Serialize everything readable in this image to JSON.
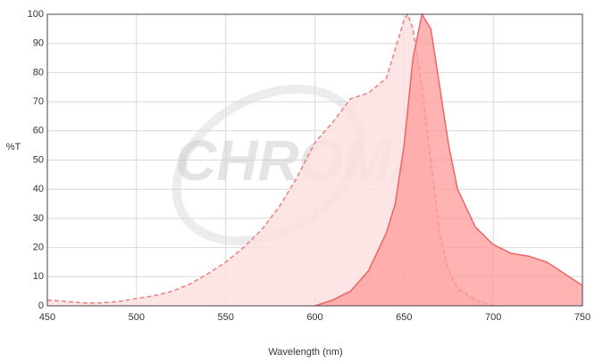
{
  "watermark": "CHROMA",
  "chart_data": {
    "type": "area",
    "x_label": "Wavelength (nm)",
    "y_label": "%T",
    "xlim": [
      450,
      750
    ],
    "ylim": [
      0,
      100
    ],
    "xticks": [
      450,
      500,
      550,
      600,
      650,
      700,
      750
    ],
    "yticks": [
      0,
      10,
      20,
      30,
      40,
      50,
      60,
      70,
      80,
      90,
      100
    ],
    "grid": true,
    "series": [
      {
        "color": "#f08080",
        "fill": "#fde0e1",
        "dashed": true,
        "x": [
          450,
          460,
          470,
          480,
          490,
          500,
          510,
          520,
          530,
          540,
          550,
          560,
          570,
          580,
          590,
          600,
          610,
          620,
          630,
          640,
          645,
          650,
          652,
          655,
          660,
          665,
          670,
          675,
          680,
          690,
          700
        ],
        "values": [
          2,
          1.5,
          1,
          1,
          1.5,
          2.5,
          3.5,
          5,
          7.5,
          11,
          15,
          20,
          26,
          34,
          44,
          56,
          63,
          71,
          73,
          78,
          88,
          98,
          100,
          95,
          75,
          50,
          25,
          12,
          6,
          2,
          0
        ]
      },
      {
        "color": "#ee6666",
        "fill": "#ff9a9a",
        "dashed": false,
        "x": [
          600,
          610,
          620,
          630,
          640,
          645,
          650,
          655,
          660,
          665,
          670,
          675,
          680,
          690,
          700,
          710,
          720,
          730,
          740,
          750
        ],
        "values": [
          0,
          2,
          5,
          12,
          25,
          35,
          55,
          85,
          100,
          95,
          75,
          55,
          40,
          27,
          21,
          18,
          17,
          15,
          11,
          7
        ]
      }
    ]
  }
}
